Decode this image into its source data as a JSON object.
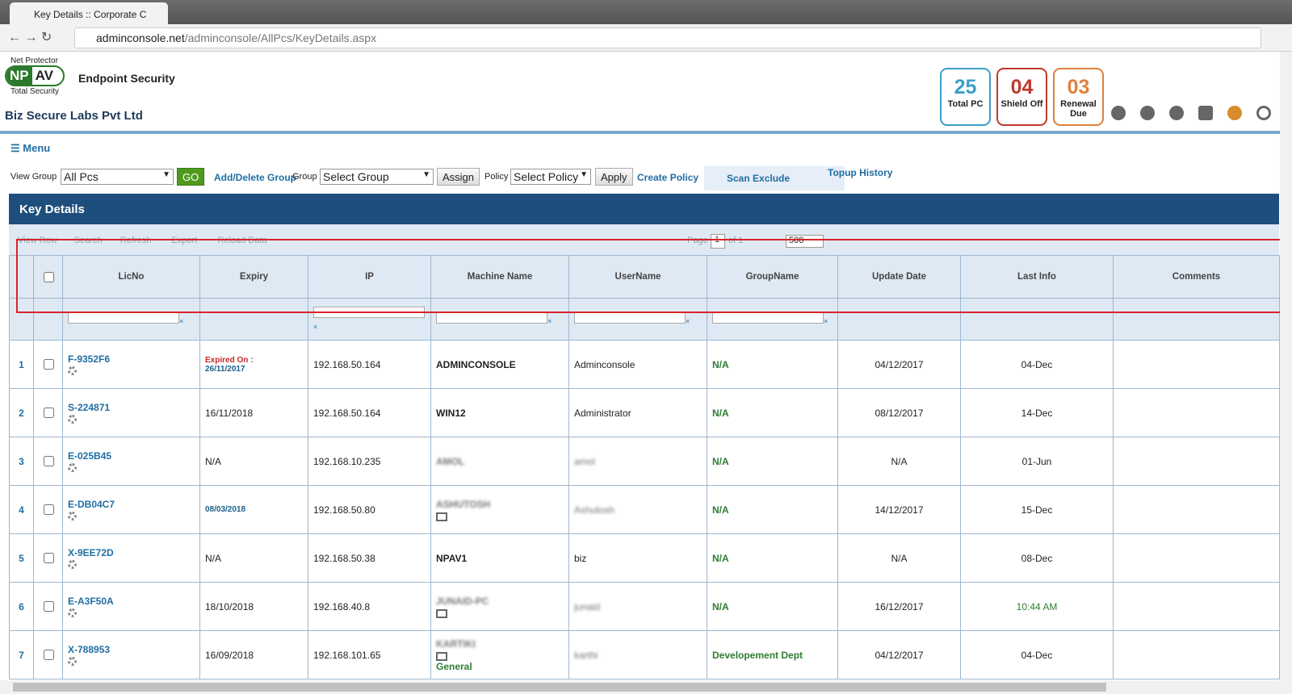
{
  "browser": {
    "tab_title": "Key Details :: Corporate C",
    "url_host": "adminconsole.net",
    "url_path": "/adminconsole/AllPcs/KeyDetails.aspx"
  },
  "header": {
    "brand_top": "Net Protector",
    "logo_left": "NP",
    "logo_right": "AV",
    "brand_bottom": "Total Security",
    "product": "Endpoint Security",
    "company": "Biz Secure Labs Pvt Ltd",
    "stats": [
      {
        "value": "25",
        "label": "Total PC",
        "color": "#3a9fc8"
      },
      {
        "value": "04",
        "label": "Shield Off",
        "color": "#c0392b"
      },
      {
        "value": "03",
        "label": "Renewal Due",
        "color": "#e0803a"
      }
    ]
  },
  "menu": "Menu",
  "toolbar": {
    "view_group_label": "View Group",
    "view_group_value": "All Pcs",
    "go": "GO",
    "add_delete_group": "Add/Delete Group",
    "group_label": "Group",
    "group_value": "Select Group",
    "assign": "Assign",
    "policy_label": "Policy",
    "policy_value": "Select Policy",
    "apply": "Apply",
    "create_policy": "Create Policy",
    "scan_exclude": "Scan Exclude",
    "topup_history": "Topup History"
  },
  "panel_title": "Key Details",
  "pager": {
    "actions": [
      "View Row",
      "Search",
      "Refresh",
      "Export",
      "Reload Data"
    ],
    "page_label": "Page",
    "page_value": "1",
    "of_label": "of 1",
    "page_size": "500"
  },
  "table": {
    "columns": [
      "LicNo",
      "Expiry",
      "IP",
      "Machine Name",
      "UserName",
      "GroupName",
      "Update Date",
      "Last Info",
      "Comments"
    ],
    "rows": [
      {
        "n": "1",
        "lic": "F-9352F6",
        "expiry_note": "Expired On :",
        "expiry": "26/11/2017",
        "expiry_color": "#1a5f8a",
        "ip": "192.168.50.164",
        "machine": "ADMINCONSOLE",
        "user": "Adminconsole",
        "group": "N/A",
        "update": "04/12/2017",
        "last": "04-Dec"
      },
      {
        "n": "2",
        "lic": "S-224871",
        "expiry": "16/11/2018",
        "ip": "192.168.50.164",
        "machine": "WIN12",
        "user": "Administrator",
        "group": "N/A",
        "update": "08/12/2017",
        "last": "14-Dec"
      },
      {
        "n": "3",
        "lic": "E-025B45",
        "expiry": "N/A",
        "ip": "192.168.10.235",
        "machine": "AMOL",
        "machine_blurred": true,
        "user": "amol",
        "user_blurred": true,
        "group": "N/A",
        "update": "N/A",
        "last": "01-Jun"
      },
      {
        "n": "4",
        "lic": "E-DB04C7",
        "expiry": "08/03/2018",
        "expiry_color": "#1a5f8a",
        "ip": "192.168.50.80",
        "machine": "ASHUTOSH",
        "machine_blurred": true,
        "machine_icon": true,
        "user": "Ashutosh",
        "user_blurred": true,
        "group": "N/A",
        "update": "14/12/2017",
        "last": "15-Dec"
      },
      {
        "n": "5",
        "lic": "X-9EE72D",
        "expiry": "N/A",
        "ip": "192.168.50.38",
        "machine": "NPAV1",
        "user": "biz",
        "group": "N/A",
        "update": "N/A",
        "last": "08-Dec"
      },
      {
        "n": "6",
        "lic": "E-A3F50A",
        "expiry": "18/10/2018",
        "ip": "192.168.40.8",
        "machine": "JUNAID-PC",
        "machine_blurred": true,
        "machine_icon": true,
        "user": "junaid",
        "user_blurred": true,
        "group": "N/A",
        "update": "16/12/2017",
        "last": "10:44 AM",
        "last_color": "#2e7d32"
      },
      {
        "n": "7",
        "lic": "X-788953",
        "expiry": "16/09/2018",
        "ip": "192.168.101.65",
        "machine": "KARTIKI",
        "machine_blurred": true,
        "machine_icon": true,
        "machine_group": "General",
        "user": "karthi",
        "user_blurred": true,
        "group": "Developement Dept",
        "update": "04/12/2017",
        "last": "04-Dec"
      }
    ]
  }
}
